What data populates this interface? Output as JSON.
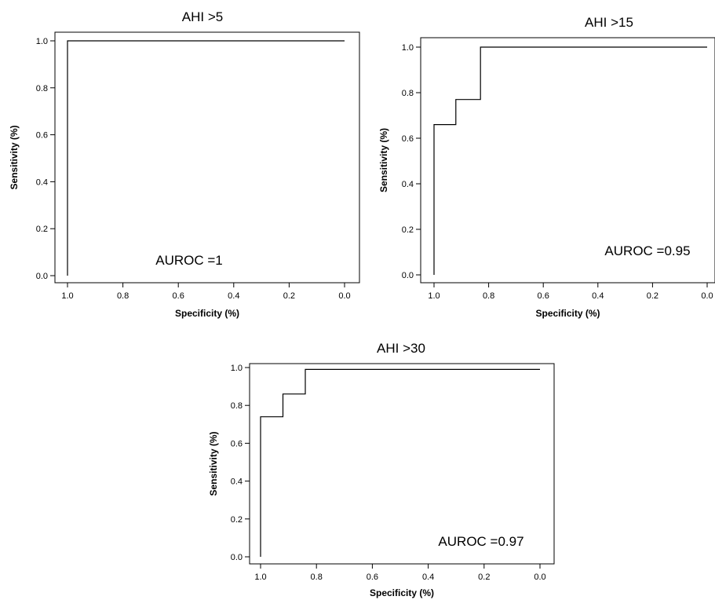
{
  "chart_data": [
    {
      "type": "line",
      "title": "AHI >5",
      "xlabel": "Specificity (%)",
      "ylabel": "Sensitivity (%)",
      "xlim": [
        1.0,
        0.0
      ],
      "ylim": [
        0.0,
        1.0
      ],
      "x_ticks": [
        "1.0",
        "0.8",
        "0.6",
        "0.4",
        "0.2",
        "0.0"
      ],
      "y_ticks": [
        "0.0",
        "0.2",
        "0.4",
        "0.6",
        "0.8",
        "1.0"
      ],
      "annotation": "AUROC =1",
      "series": [
        {
          "x": [
            1.0,
            1.0,
            0.0
          ],
          "y": [
            0.0,
            1.0,
            1.0
          ]
        }
      ]
    },
    {
      "type": "line",
      "title": "AHI >15",
      "xlabel": "Specificity (%)",
      "ylabel": "Sensitivity (%)",
      "xlim": [
        1.0,
        0.0
      ],
      "ylim": [
        0.0,
        1.0
      ],
      "x_ticks": [
        "1.0",
        "0.8",
        "0.6",
        "0.4",
        "0.2",
        "0.0"
      ],
      "y_ticks": [
        "0.0",
        "0.2",
        "0.4",
        "0.6",
        "0.8",
        "1.0"
      ],
      "annotation": "AUROC =0.95",
      "series": [
        {
          "x": [
            1.0,
            1.0,
            0.92,
            0.92,
            0.83,
            0.83,
            0.0
          ],
          "y": [
            0.0,
            0.66,
            0.66,
            0.77,
            0.77,
            1.0,
            1.0
          ]
        }
      ]
    },
    {
      "type": "line",
      "title": "AHI >30",
      "xlabel": "Specificity (%)",
      "ylabel": "Sensitivity (%)",
      "xlim": [
        1.0,
        0.0
      ],
      "ylim": [
        0.0,
        1.0
      ],
      "x_ticks": [
        "1.0",
        "0.8",
        "0.6",
        "0.4",
        "0.2",
        "0.0"
      ],
      "y_ticks": [
        "0.0",
        "0.2",
        "0.4",
        "0.6",
        "0.8",
        "1.0"
      ],
      "annotation": "AUROC =0.97",
      "series": [
        {
          "x": [
            1.0,
            1.0,
            0.92,
            0.92,
            0.84,
            0.84,
            0.0
          ],
          "y": [
            0.0,
            0.74,
            0.74,
            0.86,
            0.86,
            0.99,
            0.99
          ]
        }
      ]
    }
  ]
}
